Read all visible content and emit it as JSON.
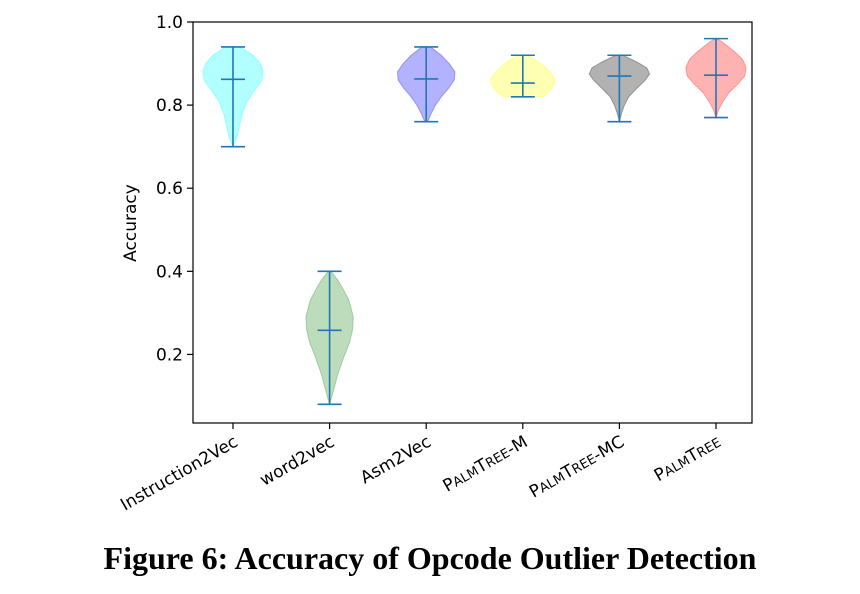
{
  "caption": "Figure 6: Accuracy of Opcode Outlier Detection",
  "chart_data": {
    "type": "violin",
    "ylabel": "Accuracy",
    "ylim": [
      0.035,
      1.0
    ],
    "yticks": [
      0.2,
      0.4,
      0.6,
      0.8,
      1.0
    ],
    "ytick_labels": [
      "0.2",
      "0.4",
      "0.6",
      "0.8",
      "1.0"
    ],
    "grid": false,
    "categories": [
      {
        "label": "Instruction2Vec",
        "label_parts": null,
        "min": 0.7,
        "median": 0.862,
        "max": 0.94,
        "color": "#00ffff",
        "width_profile": [
          [
            0.7,
            0.0
          ],
          [
            0.72,
            0.05
          ],
          [
            0.75,
            0.09
          ],
          [
            0.78,
            0.13
          ],
          [
            0.81,
            0.2
          ],
          [
            0.84,
            0.32
          ],
          [
            0.86,
            0.4
          ],
          [
            0.88,
            0.42
          ],
          [
            0.9,
            0.38
          ],
          [
            0.92,
            0.28
          ],
          [
            0.94,
            0.1
          ]
        ]
      },
      {
        "label": "word2vec",
        "label_parts": null,
        "min": 0.08,
        "median": 0.258,
        "max": 0.4,
        "color": "#228b22",
        "width_profile": [
          [
            0.08,
            0.0
          ],
          [
            0.11,
            0.05
          ],
          [
            0.15,
            0.11
          ],
          [
            0.19,
            0.19
          ],
          [
            0.23,
            0.28
          ],
          [
            0.26,
            0.32
          ],
          [
            0.29,
            0.33
          ],
          [
            0.33,
            0.27
          ],
          [
            0.36,
            0.18
          ],
          [
            0.38,
            0.11
          ],
          [
            0.4,
            0.02
          ]
        ]
      },
      {
        "label": "Asm2Vec",
        "label_parts": null,
        "min": 0.76,
        "median": 0.863,
        "max": 0.94,
        "color": "#0000ff",
        "width_profile": [
          [
            0.76,
            0.02
          ],
          [
            0.78,
            0.07
          ],
          [
            0.8,
            0.13
          ],
          [
            0.82,
            0.21
          ],
          [
            0.84,
            0.31
          ],
          [
            0.86,
            0.39
          ],
          [
            0.88,
            0.4
          ],
          [
            0.9,
            0.32
          ],
          [
            0.92,
            0.21
          ],
          [
            0.94,
            0.06
          ]
        ]
      },
      {
        "label": "PalmTree-M",
        "label_parts": [
          [
            "P",
            "big"
          ],
          [
            "ALM",
            "small"
          ],
          [
            "T",
            "big"
          ],
          [
            "REE",
            "small"
          ],
          [
            "-M",
            "big"
          ]
        ],
        "min": 0.82,
        "median": 0.853,
        "max": 0.92,
        "color": "#ffff00",
        "width_profile": [
          [
            0.82,
            0.28
          ],
          [
            0.835,
            0.38
          ],
          [
            0.85,
            0.44
          ],
          [
            0.865,
            0.44
          ],
          [
            0.88,
            0.38
          ],
          [
            0.895,
            0.29
          ],
          [
            0.91,
            0.17
          ],
          [
            0.92,
            0.06
          ]
        ]
      },
      {
        "label": "PalmTree-MC",
        "label_parts": [
          [
            "P",
            "big"
          ],
          [
            "ALM",
            "small"
          ],
          [
            "T",
            "big"
          ],
          [
            "REE",
            "small"
          ],
          [
            "-MC",
            "big"
          ]
        ],
        "min": 0.76,
        "median": 0.87,
        "max": 0.92,
        "color": "#000000",
        "width_profile": [
          [
            0.76,
            0.0
          ],
          [
            0.78,
            0.03
          ],
          [
            0.8,
            0.07
          ],
          [
            0.82,
            0.13
          ],
          [
            0.84,
            0.24
          ],
          [
            0.86,
            0.36
          ],
          [
            0.875,
            0.42
          ],
          [
            0.89,
            0.38
          ],
          [
            0.905,
            0.23
          ],
          [
            0.92,
            0.05
          ]
        ]
      },
      {
        "label": "PalmTree",
        "label_parts": [
          [
            "P",
            "big"
          ],
          [
            "ALM",
            "small"
          ],
          [
            "T",
            "big"
          ],
          [
            "REE",
            "small"
          ]
        ],
        "min": 0.77,
        "median": 0.872,
        "max": 0.96,
        "color": "#ff0000",
        "width_profile": [
          [
            0.77,
            0.0
          ],
          [
            0.79,
            0.04
          ],
          [
            0.81,
            0.1
          ],
          [
            0.83,
            0.18
          ],
          [
            0.85,
            0.3
          ],
          [
            0.87,
            0.4
          ],
          [
            0.89,
            0.42
          ],
          [
            0.91,
            0.37
          ],
          [
            0.93,
            0.25
          ],
          [
            0.95,
            0.1
          ],
          [
            0.96,
            0.02
          ]
        ]
      }
    ],
    "violin_opacity": 0.3,
    "stat_line_color": "#1f77b4"
  }
}
